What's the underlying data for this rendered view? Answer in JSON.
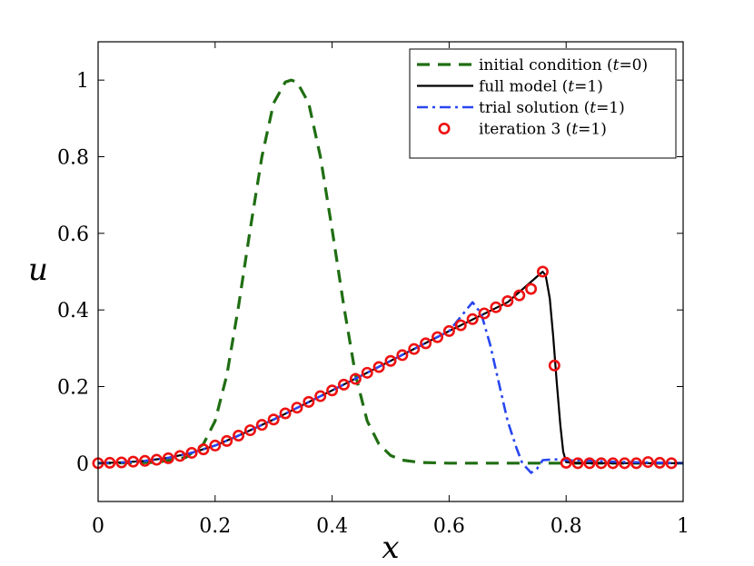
{
  "chart_data": {
    "type": "line",
    "xlabel": "x",
    "ylabel": "u",
    "xlim": [
      0,
      1
    ],
    "ylim": [
      -0.1,
      1.1
    ],
    "xticks": [
      0,
      0.2,
      0.4,
      0.6,
      0.8,
      1
    ],
    "xtick_labels": [
      "0",
      "0.2",
      "0.4",
      "0.6",
      "0.8",
      "1"
    ],
    "yticks": [
      0,
      0.2,
      0.4,
      0.6,
      0.8,
      1
    ],
    "ytick_labels": [
      "0",
      "0.2",
      "0.4",
      "0.6",
      "0.8",
      "1"
    ],
    "grid": false,
    "legend_position": "top-right",
    "series": [
      {
        "name": "initial condition (t=0)",
        "legend_prefix": "initial condition (",
        "legend_var": "t",
        "legend_suffix": "=0)",
        "style": "dashed",
        "color": "#1f6e12",
        "x": [
          0,
          0.1,
          0.15,
          0.18,
          0.2,
          0.22,
          0.24,
          0.26,
          0.28,
          0.3,
          0.32,
          0.33,
          0.34,
          0.36,
          0.38,
          0.4,
          0.42,
          0.44,
          0.46,
          0.48,
          0.5,
          0.52,
          0.55,
          0.6,
          0.7,
          0.8,
          0.9,
          1.0
        ],
        "y": [
          0,
          0.002,
          0.015,
          0.05,
          0.11,
          0.23,
          0.41,
          0.61,
          0.8,
          0.94,
          0.995,
          1.0,
          0.995,
          0.94,
          0.8,
          0.61,
          0.41,
          0.23,
          0.11,
          0.05,
          0.02,
          0.008,
          0.002,
          0,
          0,
          0,
          0,
          0
        ]
      },
      {
        "name": "full model (t=1)",
        "legend_prefix": "full model (",
        "legend_var": "t",
        "legend_suffix": "=1)",
        "style": "solid",
        "color": "#000000",
        "x": [
          0,
          0.04,
          0.08,
          0.12,
          0.16,
          0.2,
          0.24,
          0.3,
          0.4,
          0.5,
          0.6,
          0.7,
          0.76,
          0.765,
          0.772,
          0.778,
          0.784,
          0.79,
          0.795,
          0.8,
          0.82,
          0.9,
          1.0
        ],
        "y": [
          0,
          0.002,
          0.006,
          0.014,
          0.027,
          0.046,
          0.072,
          0.114,
          0.19,
          0.267,
          0.345,
          0.42,
          0.5,
          0.49,
          0.43,
          0.33,
          0.21,
          0.1,
          0.03,
          0.003,
          0,
          0,
          0
        ]
      },
      {
        "name": "trial solution (t=1)",
        "legend_prefix": "trial solution (",
        "legend_var": "t",
        "legend_suffix": "=1)",
        "style": "dashdot",
        "color": "#2846f0",
        "x": [
          0,
          0.04,
          0.08,
          0.12,
          0.16,
          0.2,
          0.24,
          0.3,
          0.4,
          0.5,
          0.6,
          0.64,
          0.655,
          0.67,
          0.685,
          0.7,
          0.715,
          0.725,
          0.74,
          0.75,
          0.76,
          0.78,
          0.8,
          0.9,
          1.0
        ],
        "y": [
          0,
          0.002,
          0.006,
          0.014,
          0.027,
          0.046,
          0.072,
          0.114,
          0.19,
          0.267,
          0.345,
          0.42,
          0.39,
          0.31,
          0.21,
          0.11,
          0.04,
          0.0,
          -0.025,
          -0.015,
          0.008,
          0.01,
          0.008,
          0.003,
          0
        ]
      },
      {
        "name": "iteration 3 (t=1)",
        "legend_prefix": "iteration 3 (",
        "legend_var": "t",
        "legend_suffix": "=1)",
        "style": "markers",
        "color": "#ee1111",
        "x": [
          0,
          0.02,
          0.04,
          0.06,
          0.08,
          0.1,
          0.12,
          0.14,
          0.16,
          0.18,
          0.2,
          0.22,
          0.24,
          0.26,
          0.28,
          0.3,
          0.32,
          0.34,
          0.36,
          0.38,
          0.4,
          0.42,
          0.44,
          0.46,
          0.48,
          0.5,
          0.52,
          0.54,
          0.56,
          0.58,
          0.6,
          0.62,
          0.64,
          0.66,
          0.68,
          0.7,
          0.72,
          0.74,
          0.76,
          0.78,
          0.8,
          0.82,
          0.84,
          0.86,
          0.88,
          0.9,
          0.92,
          0.94,
          0.96,
          0.98
        ],
        "y": [
          0,
          0.001,
          0.002,
          0.004,
          0.006,
          0.009,
          0.013,
          0.019,
          0.027,
          0.036,
          0.046,
          0.058,
          0.072,
          0.086,
          0.1,
          0.114,
          0.13,
          0.145,
          0.16,
          0.175,
          0.19,
          0.205,
          0.22,
          0.236,
          0.251,
          0.267,
          0.282,
          0.298,
          0.313,
          0.329,
          0.345,
          0.36,
          0.376,
          0.391,
          0.407,
          0.423,
          0.438,
          0.455,
          0.5,
          0.255,
          0.001,
          0,
          0,
          0,
          0,
          0,
          0,
          0.003,
          0.001,
          0
        ]
      }
    ]
  }
}
